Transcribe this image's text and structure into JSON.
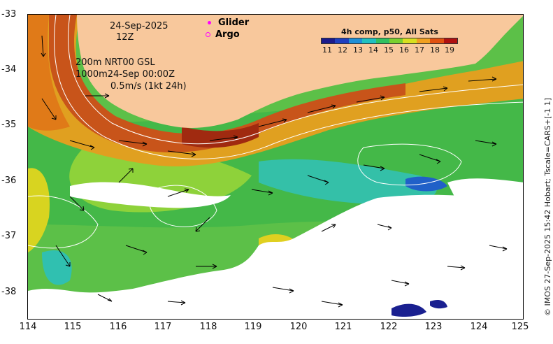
{
  "map": {
    "date": "24-Sep-2025",
    "time": "12Z",
    "layer_line1": "200m  NRT00 GSL",
    "layer_line2": "1000m24-Sep 00:00Z",
    "scale_label": "0.5m/s (1kt 24h)",
    "x_ticks": [
      "114",
      "115",
      "116",
      "117",
      "118",
      "119",
      "120",
      "121",
      "122",
      "123",
      "124",
      "125"
    ],
    "y_ticks": [
      "-33",
      "-34",
      "-35",
      "-36",
      "-37",
      "-38"
    ]
  },
  "legend": {
    "glider": "Glider",
    "argo": "Argo",
    "marker_color": "#ff00ff"
  },
  "colorbar": {
    "title": "4h comp, p50, All Sats",
    "labels": [
      "11",
      "12",
      "13",
      "14",
      "15",
      "16",
      "17",
      "18",
      "19"
    ],
    "colors": [
      "#1a1a8c",
      "#1f3fbf",
      "#1e8fd6",
      "#20c0c0",
      "#30c060",
      "#7ad030",
      "#d8e020",
      "#f0a020",
      "#e05010",
      "#b01010"
    ]
  },
  "palette": {
    "land": "#f8c89c",
    "hot": "#b83010",
    "orange": "#e07818",
    "yellow": "#e8d020",
    "green": "#4cc040",
    "cyan": "#30c0b0",
    "blue": "#2060c8",
    "lightgreen": "#9ad838"
  },
  "credit": "© IMOS 27-Sep-2025 15:42 Hobart; Tscale=CARS+[-1 1]"
}
